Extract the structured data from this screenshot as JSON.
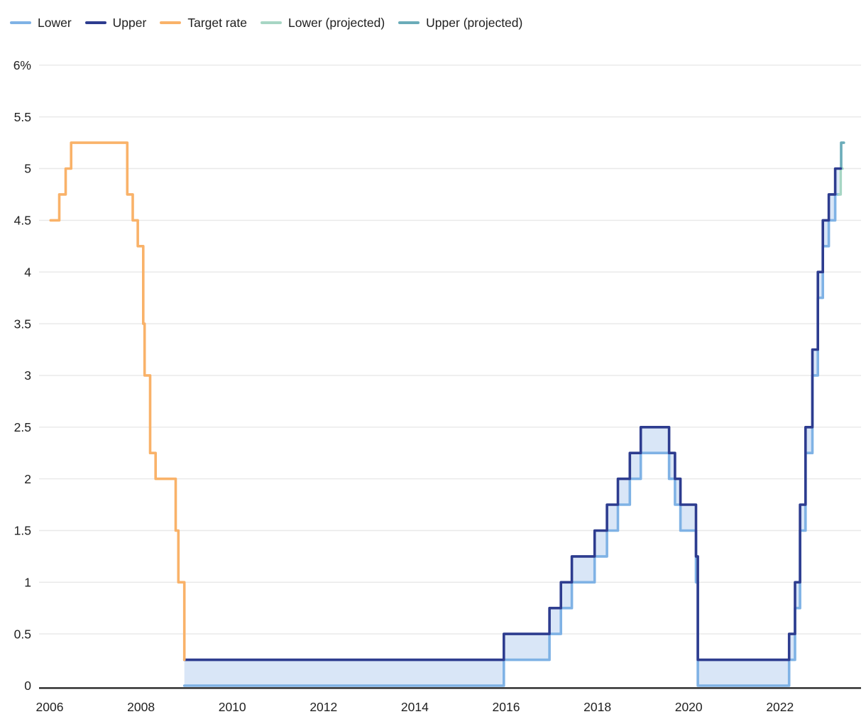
{
  "chart_data": {
    "type": "line",
    "subtype": "step",
    "title": "",
    "xlabel": "",
    "ylabel": "",
    "grid": "horizontal",
    "legend_position": "top-left",
    "ylim": [
      0,
      6
    ],
    "xlim": [
      2005.77,
      2023.78
    ],
    "yticks": [
      {
        "label": "6%",
        "value": 6
      },
      {
        "label": "5.5",
        "value": 5.5
      },
      {
        "label": "5",
        "value": 5
      },
      {
        "label": "4.5",
        "value": 4.5
      },
      {
        "label": "4",
        "value": 4
      },
      {
        "label": "3.5",
        "value": 3.5
      },
      {
        "label": "3",
        "value": 3
      },
      {
        "label": "2.5",
        "value": 2.5
      },
      {
        "label": "2",
        "value": 2
      },
      {
        "label": "1.5",
        "value": 1.5
      },
      {
        "label": "1",
        "value": 1
      },
      {
        "label": "0.5",
        "value": 0.5
      },
      {
        "label": "0",
        "value": 0
      }
    ],
    "xticks": [
      {
        "label": "2006",
        "value": 2006
      },
      {
        "label": "2008",
        "value": 2008
      },
      {
        "label": "2010",
        "value": 2010
      },
      {
        "label": "2012",
        "value": 2012
      },
      {
        "label": "2014",
        "value": 2014
      },
      {
        "label": "2016",
        "value": 2016
      },
      {
        "label": "2018",
        "value": 2018
      },
      {
        "label": "2020",
        "value": 2020
      },
      {
        "label": "2022",
        "value": 2022
      }
    ],
    "colors": {
      "axis": "#1c1c1c",
      "gridline": "#e8e8e8",
      "text": "#212121",
      "fill": "#d9e6f7"
    },
    "series": [
      {
        "name": "Lower",
        "color": "#7fb2e5",
        "points": [
          [
            2008.95,
            0
          ],
          [
            2015.95,
            0
          ],
          [
            2015.95,
            0.25
          ],
          [
            2016.95,
            0.25
          ],
          [
            2016.95,
            0.5
          ],
          [
            2017.2,
            0.5
          ],
          [
            2017.2,
            0.75
          ],
          [
            2017.44,
            0.75
          ],
          [
            2017.44,
            1.0
          ],
          [
            2017.94,
            1.0
          ],
          [
            2017.94,
            1.25
          ],
          [
            2018.21,
            1.25
          ],
          [
            2018.21,
            1.5
          ],
          [
            2018.45,
            1.5
          ],
          [
            2018.45,
            1.75
          ],
          [
            2018.71,
            1.75
          ],
          [
            2018.71,
            2.0
          ],
          [
            2018.95,
            2.0
          ],
          [
            2018.95,
            2.25
          ],
          [
            2019.57,
            2.25
          ],
          [
            2019.57,
            2.0
          ],
          [
            2019.7,
            2.0
          ],
          [
            2019.7,
            1.75
          ],
          [
            2019.82,
            1.75
          ],
          [
            2019.82,
            1.5
          ],
          [
            2020.16,
            1.5
          ],
          [
            2020.16,
            1.0
          ],
          [
            2020.2,
            1.0
          ],
          [
            2020.2,
            0
          ],
          [
            2022.2,
            0
          ],
          [
            2022.2,
            0.25
          ],
          [
            2022.33,
            0.25
          ],
          [
            2022.33,
            0.75
          ],
          [
            2022.44,
            0.75
          ],
          [
            2022.44,
            1.5
          ],
          [
            2022.56,
            1.5
          ],
          [
            2022.56,
            2.25
          ],
          [
            2022.71,
            2.25
          ],
          [
            2022.71,
            3.0
          ],
          [
            2022.83,
            3.0
          ],
          [
            2022.83,
            3.75
          ],
          [
            2022.94,
            3.75
          ],
          [
            2022.94,
            4.25
          ],
          [
            2023.07,
            4.25
          ],
          [
            2023.07,
            4.5
          ],
          [
            2023.21,
            4.5
          ],
          [
            2023.21,
            4.75
          ],
          [
            2023.29,
            4.75
          ]
        ]
      },
      {
        "name": "Upper",
        "color": "#2d3c8f",
        "points": [
          [
            2008.95,
            0.25
          ],
          [
            2015.95,
            0.25
          ],
          [
            2015.95,
            0.5
          ],
          [
            2016.95,
            0.5
          ],
          [
            2016.95,
            0.75
          ],
          [
            2017.2,
            0.75
          ],
          [
            2017.2,
            1.0
          ],
          [
            2017.44,
            1.0
          ],
          [
            2017.44,
            1.25
          ],
          [
            2017.94,
            1.25
          ],
          [
            2017.94,
            1.5
          ],
          [
            2018.21,
            1.5
          ],
          [
            2018.21,
            1.75
          ],
          [
            2018.45,
            1.75
          ],
          [
            2018.45,
            2.0
          ],
          [
            2018.71,
            2.0
          ],
          [
            2018.71,
            2.25
          ],
          [
            2018.95,
            2.25
          ],
          [
            2018.95,
            2.5
          ],
          [
            2019.57,
            2.5
          ],
          [
            2019.57,
            2.25
          ],
          [
            2019.7,
            2.25
          ],
          [
            2019.7,
            2.0
          ],
          [
            2019.82,
            2.0
          ],
          [
            2019.82,
            1.75
          ],
          [
            2020.16,
            1.75
          ],
          [
            2020.16,
            1.25
          ],
          [
            2020.2,
            1.25
          ],
          [
            2020.2,
            0.25
          ],
          [
            2022.2,
            0.25
          ],
          [
            2022.2,
            0.5
          ],
          [
            2022.33,
            0.5
          ],
          [
            2022.33,
            1.0
          ],
          [
            2022.44,
            1.0
          ],
          [
            2022.44,
            1.75
          ],
          [
            2022.56,
            1.75
          ],
          [
            2022.56,
            2.5
          ],
          [
            2022.71,
            2.5
          ],
          [
            2022.71,
            3.25
          ],
          [
            2022.83,
            3.25
          ],
          [
            2022.83,
            4.0
          ],
          [
            2022.94,
            4.0
          ],
          [
            2022.94,
            4.5
          ],
          [
            2023.07,
            4.5
          ],
          [
            2023.07,
            4.75
          ],
          [
            2023.21,
            4.75
          ],
          [
            2023.21,
            5.0
          ],
          [
            2023.33,
            5.0
          ]
        ]
      },
      {
        "name": "Target rate",
        "color": "#f9b269",
        "points": [
          [
            2006.02,
            4.5
          ],
          [
            2006.21,
            4.5
          ],
          [
            2006.21,
            4.75
          ],
          [
            2006.35,
            4.75
          ],
          [
            2006.35,
            5.0
          ],
          [
            2006.47,
            5.0
          ],
          [
            2006.47,
            5.25
          ],
          [
            2007.7,
            5.25
          ],
          [
            2007.7,
            4.75
          ],
          [
            2007.82,
            4.75
          ],
          [
            2007.82,
            4.5
          ],
          [
            2007.93,
            4.5
          ],
          [
            2007.93,
            4.25
          ],
          [
            2008.05,
            4.25
          ],
          [
            2008.05,
            3.5
          ],
          [
            2008.08,
            3.5
          ],
          [
            2008.08,
            3.0
          ],
          [
            2008.2,
            3.0
          ],
          [
            2008.2,
            2.25
          ],
          [
            2008.32,
            2.25
          ],
          [
            2008.32,
            2.0
          ],
          [
            2008.76,
            2.0
          ],
          [
            2008.76,
            1.5
          ],
          [
            2008.82,
            1.5
          ],
          [
            2008.82,
            1.0
          ],
          [
            2008.95,
            1.0
          ],
          [
            2008.95,
            0.25
          ]
        ]
      },
      {
        "name": "Lower (projected)",
        "color": "#a7d6c4",
        "points": [
          [
            2023.29,
            4.75
          ],
          [
            2023.33,
            4.75
          ],
          [
            2023.33,
            5.0
          ],
          [
            2023.37,
            5.0
          ]
        ]
      },
      {
        "name": "Upper (projected)",
        "color": "#6bacb9",
        "points": [
          [
            2023.34,
            5.0
          ],
          [
            2023.34,
            5.25
          ],
          [
            2023.4,
            5.25
          ]
        ]
      }
    ],
    "fill_between": {
      "lower": "Lower",
      "upper": "Upper",
      "color": "#d9e6f7",
      "x_end": 2023.29,
      "upper_value_at_end": 5.0
    },
    "draw_order": [
      "Lower",
      "Lower (projected)",
      "Upper (projected)",
      "Upper",
      "Target rate"
    ]
  }
}
